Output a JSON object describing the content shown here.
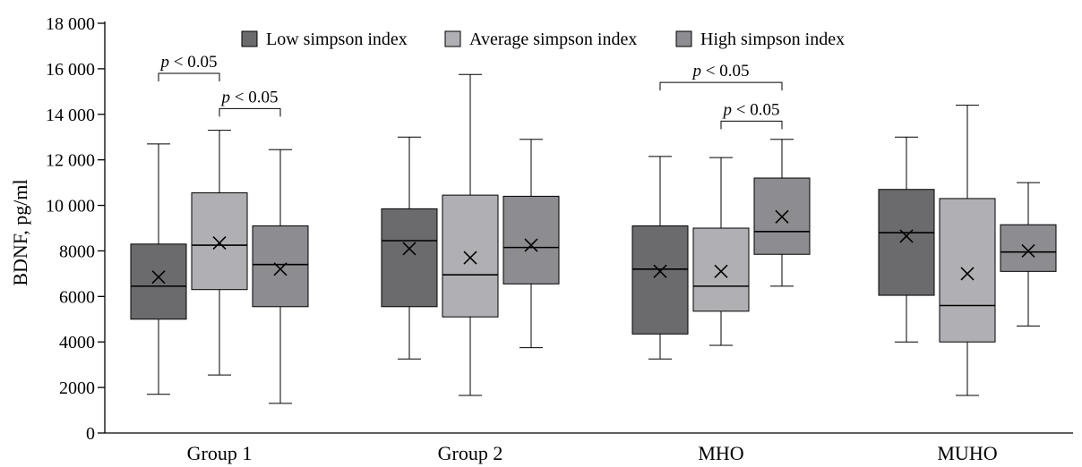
{
  "chart_data": {
    "type": "boxplot",
    "title": "",
    "xlabel": "",
    "ylabel": "BDNF, pg/ml",
    "ylim": [
      0,
      18000
    ],
    "yticks": [
      0,
      2000,
      4000,
      6000,
      8000,
      10000,
      12000,
      14000,
      16000,
      18000
    ],
    "ytick_labels": [
      "0",
      "2000",
      "4000",
      "6000",
      "8000",
      "10 000",
      "12 000",
      "14 000",
      "16 000",
      "18 000"
    ],
    "grid": false,
    "legend_position": "top",
    "categories": [
      "Group 1",
      "Group 2",
      "MHO",
      "MUHO"
    ],
    "series": [
      {
        "name": "Low simpson index",
        "color": "#6b6b6e",
        "boxes": [
          {
            "min": 1700,
            "q1": 5000,
            "median": 6450,
            "q3": 8300,
            "max": 12700,
            "mean": 6850
          },
          {
            "min": 3250,
            "q1": 5550,
            "median": 8450,
            "q3": 9850,
            "max": 13000,
            "mean": 8100
          },
          {
            "min": 3250,
            "q1": 4350,
            "median": 7200,
            "q3": 9100,
            "max": 12150,
            "mean": 7100
          },
          {
            "min": 4000,
            "q1": 6050,
            "median": 8800,
            "q3": 10700,
            "max": 13000,
            "mean": 8650
          }
        ]
      },
      {
        "name": "Average simpson index",
        "color": "#b0b0b4",
        "boxes": [
          {
            "min": 2550,
            "q1": 6300,
            "median": 8250,
            "q3": 10550,
            "max": 13300,
            "mean": 8350
          },
          {
            "min": 1650,
            "q1": 5100,
            "median": 6950,
            "q3": 10450,
            "max": 15750,
            "mean": 7700
          },
          {
            "min": 3850,
            "q1": 5350,
            "median": 6450,
            "q3": 9000,
            "max": 12100,
            "mean": 7100
          },
          {
            "min": 1650,
            "q1": 4000,
            "median": 5600,
            "q3": 10300,
            "max": 14400,
            "mean": 7000
          }
        ]
      },
      {
        "name": "High simpson index",
        "color": "#8d8d91",
        "boxes": [
          {
            "min": 1300,
            "q1": 5550,
            "median": 7400,
            "q3": 9100,
            "max": 12450,
            "mean": 7200
          },
          {
            "min": 3750,
            "q1": 6550,
            "median": 8150,
            "q3": 10400,
            "max": 12900,
            "mean": 8250
          },
          {
            "min": 6450,
            "q1": 7850,
            "median": 8850,
            "q3": 11200,
            "max": 12900,
            "mean": 9500
          },
          {
            "min": 4700,
            "q1": 7100,
            "median": 7950,
            "q3": 9150,
            "max": 11000,
            "mean": 8000
          }
        ]
      }
    ],
    "annotations": [
      {
        "category": 0,
        "from_series": 0,
        "to_series": 1,
        "y": 15800,
        "text_italic": "p",
        "text_rest": " < 0.05"
      },
      {
        "category": 0,
        "from_series": 1,
        "to_series": 2,
        "y": 14250,
        "text_italic": "p",
        "text_rest": " < 0.05"
      },
      {
        "category": 2,
        "from_series": 0,
        "to_series": 2,
        "y": 15400,
        "text_italic": "p",
        "text_rest": " < 0.05"
      },
      {
        "category": 2,
        "from_series": 1,
        "to_series": 2,
        "y": 13700,
        "text_italic": "p",
        "text_rest": " < 0.05"
      }
    ]
  }
}
